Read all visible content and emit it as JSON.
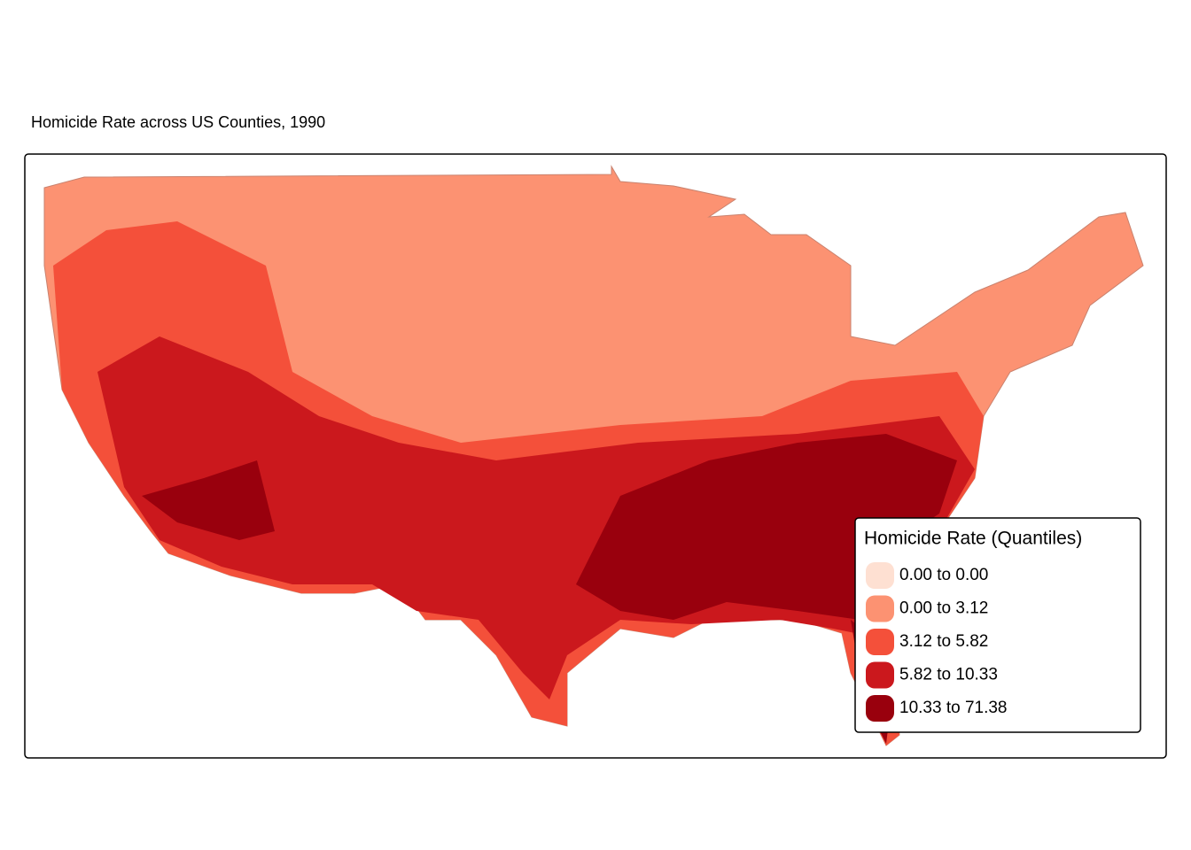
{
  "title": "Homicide Rate across US Counties, 1990",
  "legend": {
    "title": "Homicide Rate (Quantiles)",
    "items": [
      {
        "label": "0.00 to 0.00",
        "color": "#fee0d2"
      },
      {
        "label": "0.00 to 3.12",
        "color": "#fc9272"
      },
      {
        "label": "3.12 to 5.82",
        "color": "#f4503a"
      },
      {
        "label": "5.82 to 10.33",
        "color": "#cb181d"
      },
      {
        "label": "10.33 to 71.38",
        "color": "#99000d"
      }
    ]
  }
}
